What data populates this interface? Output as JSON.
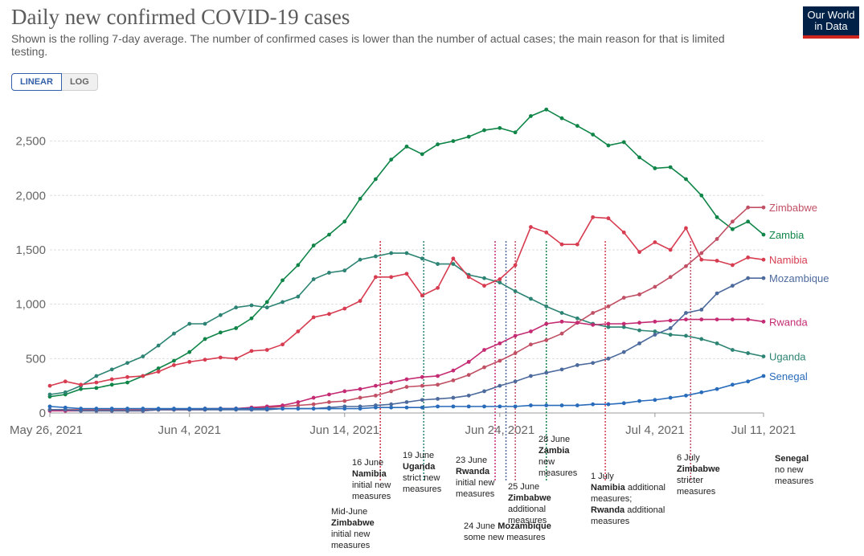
{
  "header": {
    "title": "Daily new confirmed COVID-19 cases",
    "subtitle": "Shown is the rolling 7-day average. The number of confirmed cases is lower than the number of actual cases; the main reason for that is limited testing.",
    "logo_line1": "Our World",
    "logo_line2": "in Data"
  },
  "toggle": {
    "linear": "LINEAR",
    "log": "LOG"
  },
  "chart_data": {
    "type": "line",
    "title": "Daily new confirmed COVID-19 cases",
    "xlabel": "",
    "ylabel": "",
    "ylim": [
      0,
      2800
    ],
    "y_ticks": [
      0,
      500,
      1000,
      1500,
      2000,
      2500
    ],
    "y_tick_labels": [
      "0",
      "500",
      "1,000",
      "1,500",
      "2,000",
      "2,500"
    ],
    "x_ticks": [
      0,
      9,
      19,
      29,
      39,
      46
    ],
    "x_tick_labels": [
      "May 26, 2021",
      "Jun 4, 2021",
      "Jun 14, 2021",
      "Jun 24, 2021",
      "Jul 4, 2021",
      "Jul 11, 2021"
    ],
    "x_start": "May 26, 2021",
    "x_count": 47,
    "series": [
      {
        "name": "Zambia",
        "color": "#0f8548",
        "values": [
          150,
          170,
          220,
          230,
          260,
          280,
          340,
          410,
          480,
          560,
          680,
          740,
          780,
          870,
          1020,
          1220,
          1360,
          1540,
          1640,
          1760,
          1970,
          2150,
          2330,
          2450,
          2380,
          2470,
          2500,
          2540,
          2600,
          2620,
          2580,
          2730,
          2790,
          2710,
          2640,
          2560,
          2460,
          2490,
          2350,
          2250,
          2260,
          2150,
          2000,
          1800,
          1690,
          1760,
          1640
        ]
      },
      {
        "name": "Uganda",
        "color": "#2d8474",
        "values": [
          170,
          190,
          250,
          340,
          400,
          460,
          520,
          620,
          730,
          820,
          820,
          900,
          970,
          990,
          970,
          1020,
          1070,
          1230,
          1290,
          1310,
          1410,
          1440,
          1470,
          1470,
          1420,
          1370,
          1370,
          1270,
          1240,
          1200,
          1120,
          1050,
          980,
          920,
          870,
          820,
          790,
          790,
          760,
          750,
          720,
          710,
          680,
          640,
          580,
          550,
          520
        ]
      },
      {
        "name": "Namibia",
        "color": "#d73c50",
        "values": [
          250,
          290,
          260,
          280,
          310,
          330,
          340,
          380,
          440,
          470,
          490,
          510,
          500,
          570,
          580,
          630,
          750,
          880,
          910,
          960,
          1030,
          1250,
          1250,
          1280,
          1080,
          1150,
          1420,
          1250,
          1170,
          1230,
          1360,
          1710,
          1660,
          1550,
          1550,
          1800,
          1790,
          1660,
          1480,
          1570,
          1500,
          1700,
          1410,
          1400,
          1360,
          1430,
          1410
        ]
      },
      {
        "name": "Zimbabwe",
        "color": "#c15065",
        "values": [
          30,
          30,
          30,
          30,
          30,
          30,
          30,
          30,
          30,
          30,
          40,
          40,
          40,
          50,
          50,
          60,
          70,
          80,
          100,
          110,
          140,
          160,
          200,
          240,
          250,
          260,
          300,
          350,
          420,
          480,
          550,
          630,
          670,
          730,
          830,
          920,
          980,
          1060,
          1090,
          1160,
          1250,
          1350,
          1470,
          1600,
          1760,
          1890,
          1890
        ]
      },
      {
        "name": "Rwanda",
        "color": "#c42b73",
        "values": [
          20,
          20,
          20,
          20,
          20,
          20,
          20,
          30,
          30,
          30,
          30,
          40,
          40,
          50,
          60,
          70,
          100,
          140,
          170,
          200,
          220,
          250,
          280,
          310,
          330,
          340,
          390,
          470,
          580,
          640,
          710,
          750,
          820,
          840,
          830,
          810,
          820,
          820,
          830,
          840,
          850,
          860,
          860,
          860,
          860,
          860,
          840
        ]
      },
      {
        "name": "Mozambique",
        "color": "#4c6a9c",
        "values": [
          30,
          30,
          20,
          20,
          20,
          20,
          20,
          30,
          30,
          30,
          30,
          30,
          30,
          30,
          30,
          40,
          40,
          40,
          50,
          60,
          60,
          70,
          80,
          100,
          120,
          130,
          140,
          160,
          200,
          250,
          290,
          340,
          370,
          400,
          440,
          460,
          500,
          560,
          640,
          720,
          780,
          920,
          950,
          1100,
          1170,
          1240,
          1240
        ]
      },
      {
        "name": "Senegal",
        "color": "#286bbb",
        "values": [
          60,
          50,
          40,
          40,
          40,
          40,
          40,
          40,
          40,
          40,
          40,
          40,
          40,
          40,
          40,
          40,
          40,
          40,
          40,
          40,
          40,
          50,
          50,
          50,
          50,
          60,
          60,
          60,
          60,
          60,
          60,
          70,
          70,
          70,
          70,
          80,
          80,
          90,
          110,
          120,
          140,
          160,
          190,
          220,
          260,
          290,
          340
        ]
      }
    ],
    "annotations": [
      {
        "x": 21.3,
        "color": "#c15065",
        "date": "Mid-June",
        "country": "Zimbabwe",
        "text": "initial new measures"
      },
      {
        "x": 21.3,
        "color": "#d73c50",
        "date": "16 June",
        "country": "Namibia",
        "text": "initial new measures"
      },
      {
        "x": 24.1,
        "color": "#2d8474",
        "date": "19 June",
        "country": "Uganda",
        "text": "strict new measures"
      },
      {
        "x": 28.7,
        "color": "#c42b73",
        "date": "23 June",
        "country": "Rwanda",
        "text": "initial new measures"
      },
      {
        "x": 29.4,
        "color": "#4c6a9c",
        "date": "24 June",
        "country": "Mozambique",
        "text": "some new measures"
      },
      {
        "x": 30.0,
        "color": "#c15065",
        "date": "25 June",
        "country": "Zimbabwe",
        "text": "additional measures"
      },
      {
        "x": 32.0,
        "color": "#0f8548",
        "date": "28 June",
        "country": "Zambia",
        "text": "new measures"
      },
      {
        "x": 35.8,
        "color": "#d73c50",
        "date": "1 July",
        "country": "Namibia",
        "text": "additional measures;"
      },
      {
        "x": 41.3,
        "color": "#c15065",
        "date": "6 July",
        "country": "Zimbabwe",
        "text": "stricter measures"
      },
      {
        "x": 46.0,
        "color": "#286bbb",
        "date": "",
        "country": "Senegal",
        "text": "no new measures"
      }
    ],
    "annotation_extra": {
      "country": "Rwanda",
      "text": "additional measures"
    }
  }
}
